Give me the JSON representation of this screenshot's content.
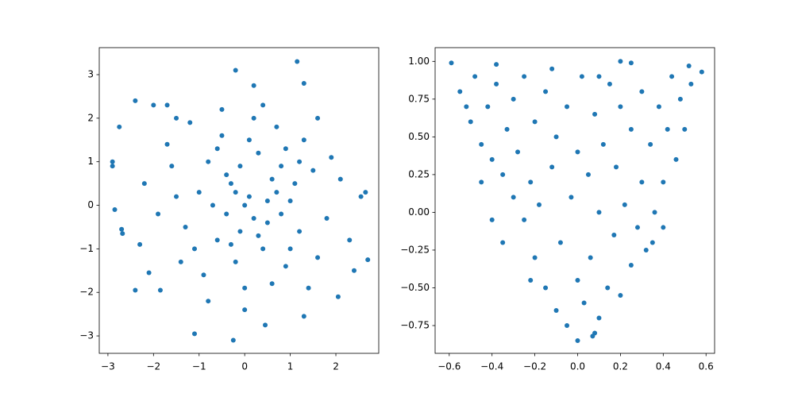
{
  "chart_data": [
    {
      "type": "scatter",
      "color": "#1f77b4",
      "xlim": [
        -3.19,
        2.94
      ],
      "ylim": [
        -3.4,
        3.62
      ],
      "xticks": [
        {
          "value": -3,
          "label": "−3"
        },
        {
          "value": -2,
          "label": "−2"
        },
        {
          "value": -1,
          "label": "−1"
        },
        0,
        1,
        2
      ],
      "yticks": [
        {
          "value": -3,
          "label": "−3"
        },
        {
          "value": -2,
          "label": "−2"
        },
        {
          "value": -1,
          "label": "−1"
        },
        0,
        1,
        2,
        3
      ],
      "x": [
        1.15,
        -0.2,
        0.2,
        1.3,
        -2.9,
        -2.9,
        -2.75,
        -2.4,
        -2.0,
        -1.7,
        -1.1,
        -0.25,
        0.45,
        1.3,
        2.55,
        2.65,
        2.7,
        2.05,
        -2.4,
        -1.85,
        -2.1,
        -2.85,
        -2.7,
        -2.68,
        0.1,
        -0.3,
        0.5,
        -0.6,
        0.8,
        -1.0,
        1.2,
        0.3,
        -0.2,
        0.0,
        0.6,
        -0.8,
        1.0,
        -1.3,
        0.4,
        -0.5,
        1.5,
        -1.6,
        0.9,
        -0.9,
        0.2,
        -0.1,
        0.7,
        -0.4,
        1.8,
        -1.9,
        0.0,
        0.2,
        1.3,
        -1.2,
        -1.4,
        1.6,
        2.1,
        -2.2,
        0.5,
        -0.7,
        0.3,
        -0.2,
        1.1,
        -1.1,
        0.8,
        -0.6,
        0.1,
        -0.3,
        1.9,
        -1.7,
        0.6,
        -0.8,
        1.4,
        2.3,
        -2.3,
        0.4,
        -0.5,
        1.0,
        -1.5,
        0.9,
        -0.1,
        0.7,
        -0.4,
        1.2,
        2.4,
        -1.5,
        0.0,
        1.6
      ],
      "y": [
        3.3,
        3.1,
        2.75,
        2.8,
        1.0,
        0.9,
        1.8,
        2.4,
        2.3,
        2.3,
        -2.95,
        -3.1,
        -2.75,
        -2.55,
        0.2,
        0.3,
        -1.25,
        -2.1,
        -1.95,
        -1.95,
        -1.55,
        -0.1,
        -0.55,
        -0.65,
        0.2,
        0.5,
        -0.4,
        -0.8,
        0.9,
        0.3,
        -0.6,
        1.2,
        -1.3,
        0.0,
        0.6,
        1.0,
        0.1,
        -0.5,
        -1.0,
        1.6,
        0.8,
        0.9,
        -1.4,
        -1.6,
        -0.3,
        0.9,
        1.8,
        -0.2,
        -0.3,
        -0.2,
        -1.9,
        2.0,
        1.5,
        1.9,
        -1.3,
        -1.2,
        0.6,
        0.5,
        0.1,
        0.0,
        -0.7,
        0.3,
        0.5,
        -1.0,
        -0.2,
        1.3,
        1.5,
        -0.9,
        1.1,
        1.4,
        -1.8,
        -2.2,
        -1.9,
        -0.8,
        -0.9,
        2.3,
        2.2,
        -1.0,
        0.2,
        1.3,
        -0.6,
        0.3,
        0.7,
        1.0,
        -1.5,
        2.0,
        -2.4,
        2.0
      ]
    },
    {
      "type": "scatter",
      "color": "#1f77b4",
      "xlim": [
        -0.666,
        0.64
      ],
      "ylim": [
        -0.934,
        1.091
      ],
      "xticks": [
        {
          "value": -0.6,
          "label": "−0.6"
        },
        {
          "value": -0.4,
          "label": "−0.4"
        },
        {
          "value": -0.2,
          "label": "−0.2"
        },
        {
          "value": 0,
          "label": "0.0"
        },
        0.2,
        0.4,
        0.6
      ],
      "yticks": [
        {
          "value": -0.75,
          "label": "−0.75"
        },
        {
          "value": -0.5,
          "label": "−0.50"
        },
        {
          "value": -0.25,
          "label": "−0.25"
        },
        {
          "value": 0,
          "label": "0.00"
        },
        0.25,
        {
          "value": 0.5,
          "label": "0.50"
        },
        0.75,
        {
          "value": 1,
          "label": "1.00"
        }
      ],
      "x": [
        -0.59,
        0.58,
        0.52,
        0.07,
        0.0,
        -0.38,
        0.2,
        0.25,
        -0.55,
        -0.5,
        -0.48,
        -0.45,
        -0.42,
        -0.4,
        -0.38,
        -0.35,
        -0.33,
        -0.3,
        -0.3,
        -0.28,
        -0.25,
        -0.25,
        -0.22,
        -0.2,
        -0.2,
        -0.18,
        -0.15,
        -0.15,
        -0.12,
        -0.1,
        -0.1,
        -0.08,
        -0.05,
        -0.05,
        -0.03,
        0.0,
        0.0,
        0.02,
        0.03,
        0.05,
        0.06,
        0.08,
        0.1,
        0.1,
        0.12,
        0.14,
        0.15,
        0.17,
        0.18,
        0.2,
        0.2,
        0.22,
        0.25,
        0.25,
        0.28,
        0.3,
        0.3,
        0.32,
        0.34,
        0.36,
        0.38,
        0.4,
        0.42,
        0.44,
        0.46,
        0.48,
        0.5,
        0.53,
        -0.35,
        -0.4,
        -0.45,
        -0.52,
        0.35,
        0.4,
        0.08,
        -0.12,
        0.1,
        -0.22
      ],
      "y": [
        0.99,
        0.93,
        0.97,
        -0.82,
        -0.85,
        0.98,
        1.0,
        0.99,
        0.8,
        0.6,
        0.9,
        0.45,
        0.7,
        0.35,
        0.85,
        0.25,
        0.55,
        0.1,
        0.75,
        0.4,
        -0.05,
        0.9,
        0.2,
        -0.3,
        0.6,
        0.05,
        -0.5,
        0.8,
        0.3,
        -0.65,
        0.5,
        -0.2,
        -0.75,
        0.7,
        0.1,
        0.4,
        -0.45,
        0.9,
        -0.6,
        0.25,
        -0.3,
        0.65,
        -0.7,
        0.0,
        0.45,
        -0.5,
        0.85,
        -0.15,
        0.3,
        -0.55,
        0.7,
        0.05,
        -0.35,
        0.55,
        -0.1,
        0.8,
        0.2,
        -0.25,
        0.45,
        0.0,
        0.7,
        0.2,
        0.55,
        0.9,
        0.35,
        0.75,
        0.55,
        0.85,
        -0.2,
        -0.05,
        0.2,
        0.7,
        -0.2,
        -0.1,
        -0.8,
        0.95,
        0.9,
        -0.45
      ]
    }
  ]
}
